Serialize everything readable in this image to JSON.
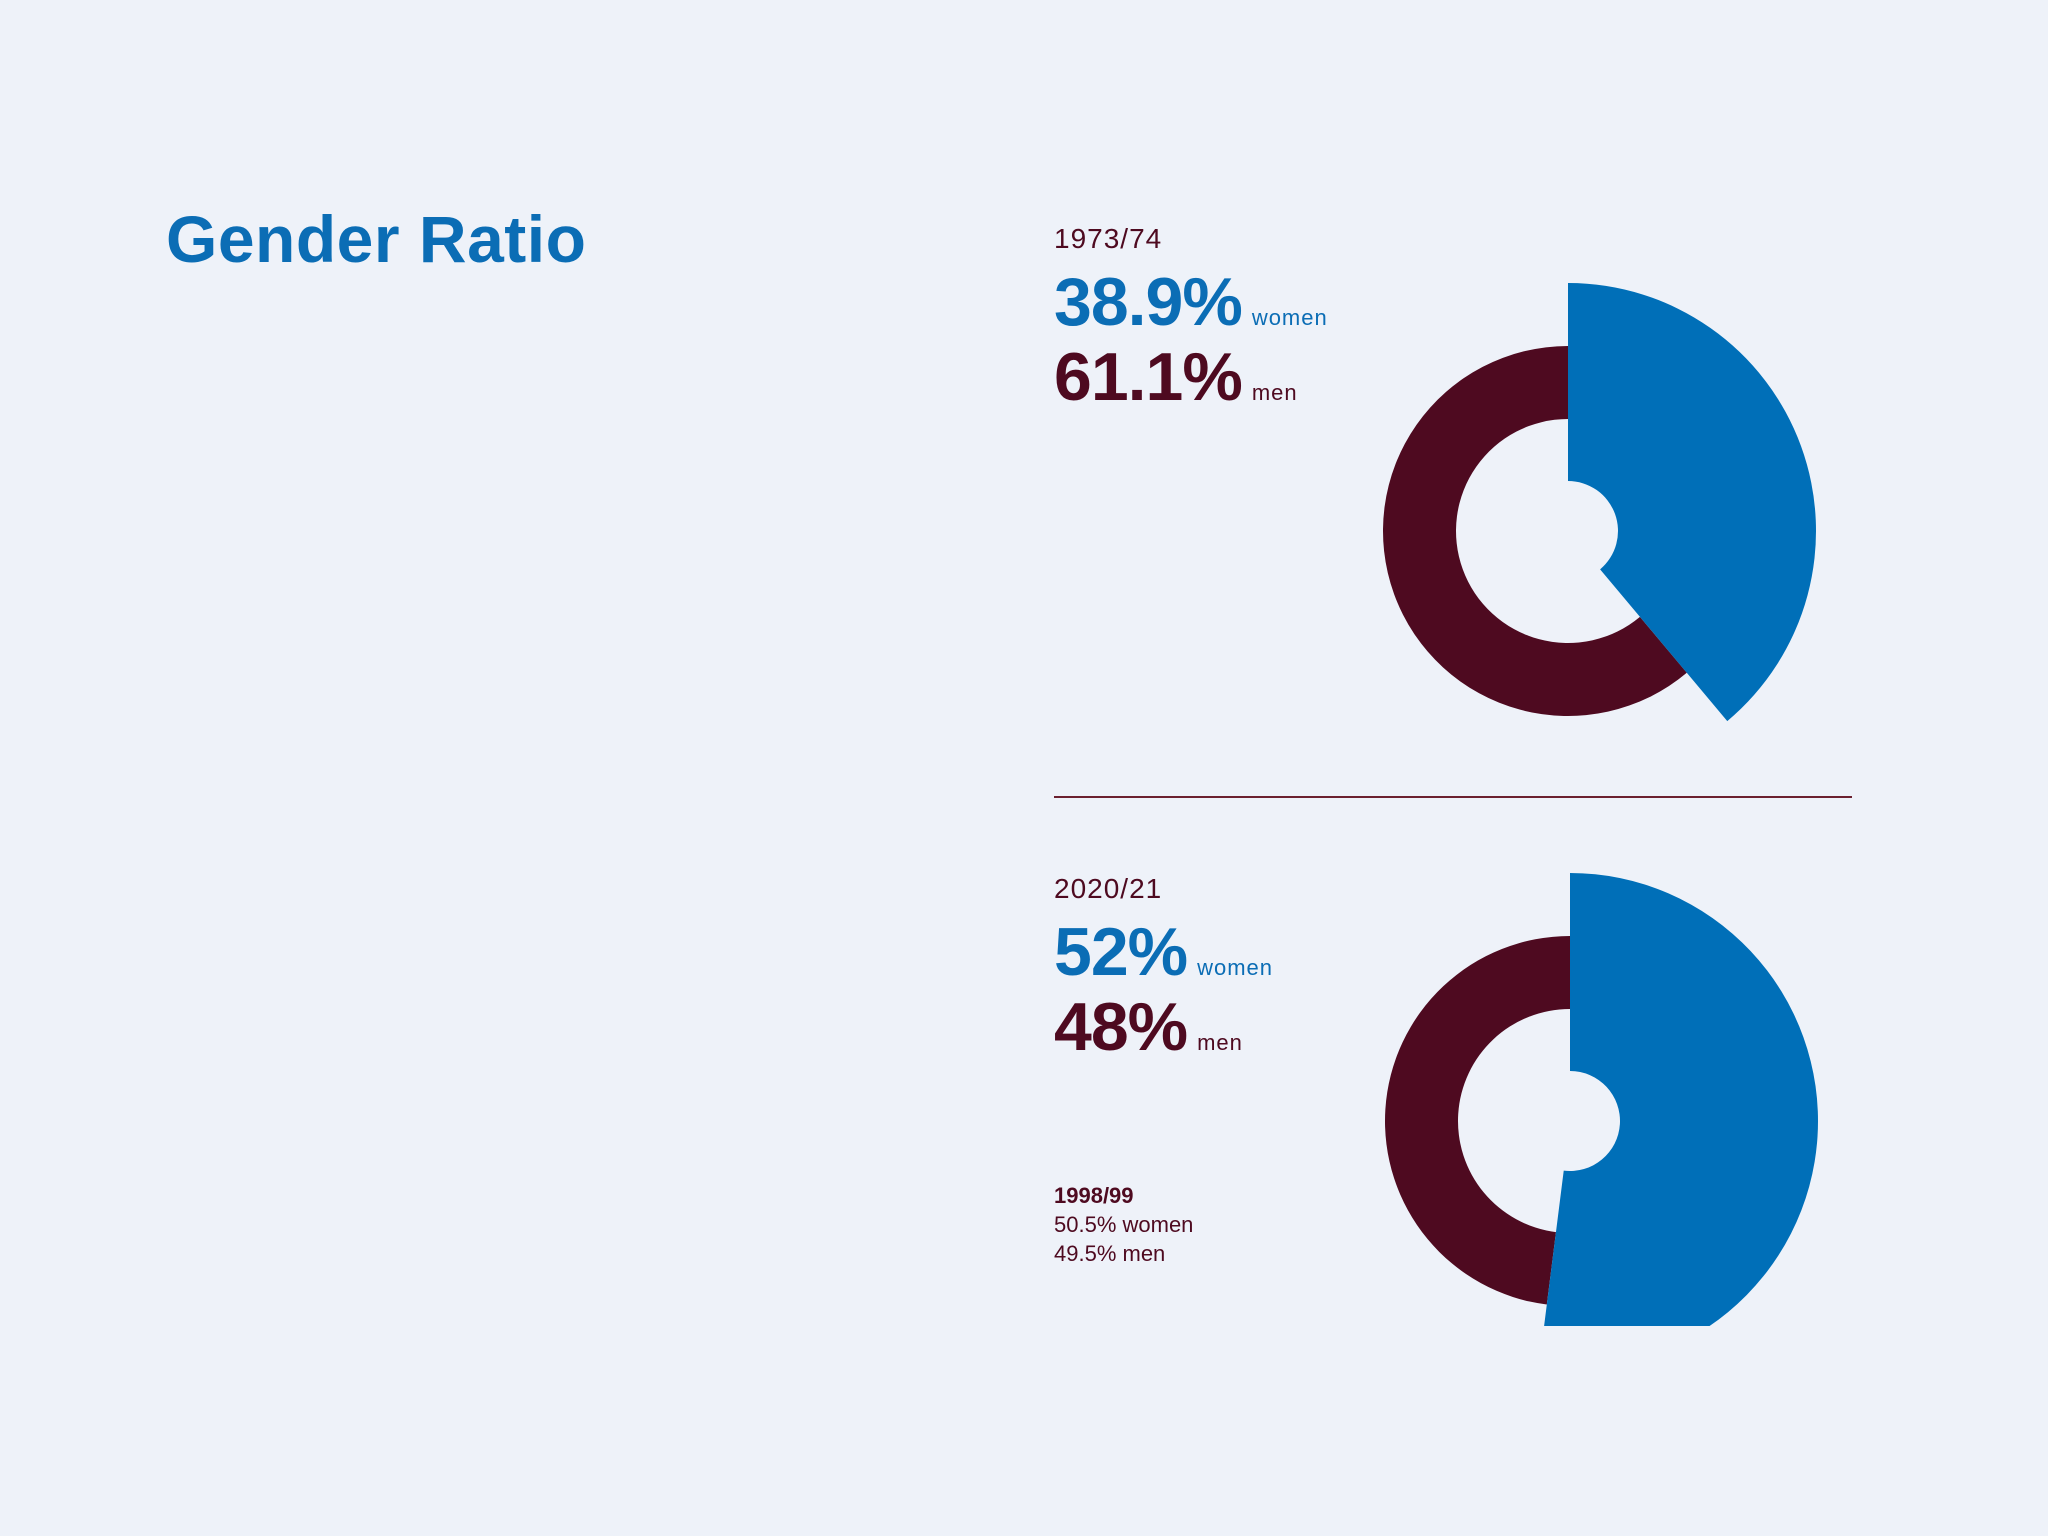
{
  "title": "Gender Ratio",
  "colors": {
    "women": "#006fb8",
    "men": "#4e0a20",
    "background": "#eef2f9"
  },
  "panels": [
    {
      "year": "1973/74",
      "women_pct": "38.9%",
      "women_label": "women",
      "men_pct": "61.1%",
      "men_label": "men"
    },
    {
      "year": "2020/21",
      "women_pct": "52%",
      "women_label": "women",
      "men_pct": "48%",
      "men_label": "men"
    }
  ],
  "note": {
    "year": "1998/99",
    "women_line": "50.5% women",
    "men_line": "49.5% men"
  },
  "chart_data": [
    {
      "type": "pie",
      "title": "1973/74",
      "categories": [
        "women",
        "men"
      ],
      "values": [
        38.9,
        61.1
      ]
    },
    {
      "type": "pie",
      "title": "2020/21",
      "categories": [
        "women",
        "men"
      ],
      "values": [
        52,
        48
      ]
    }
  ]
}
